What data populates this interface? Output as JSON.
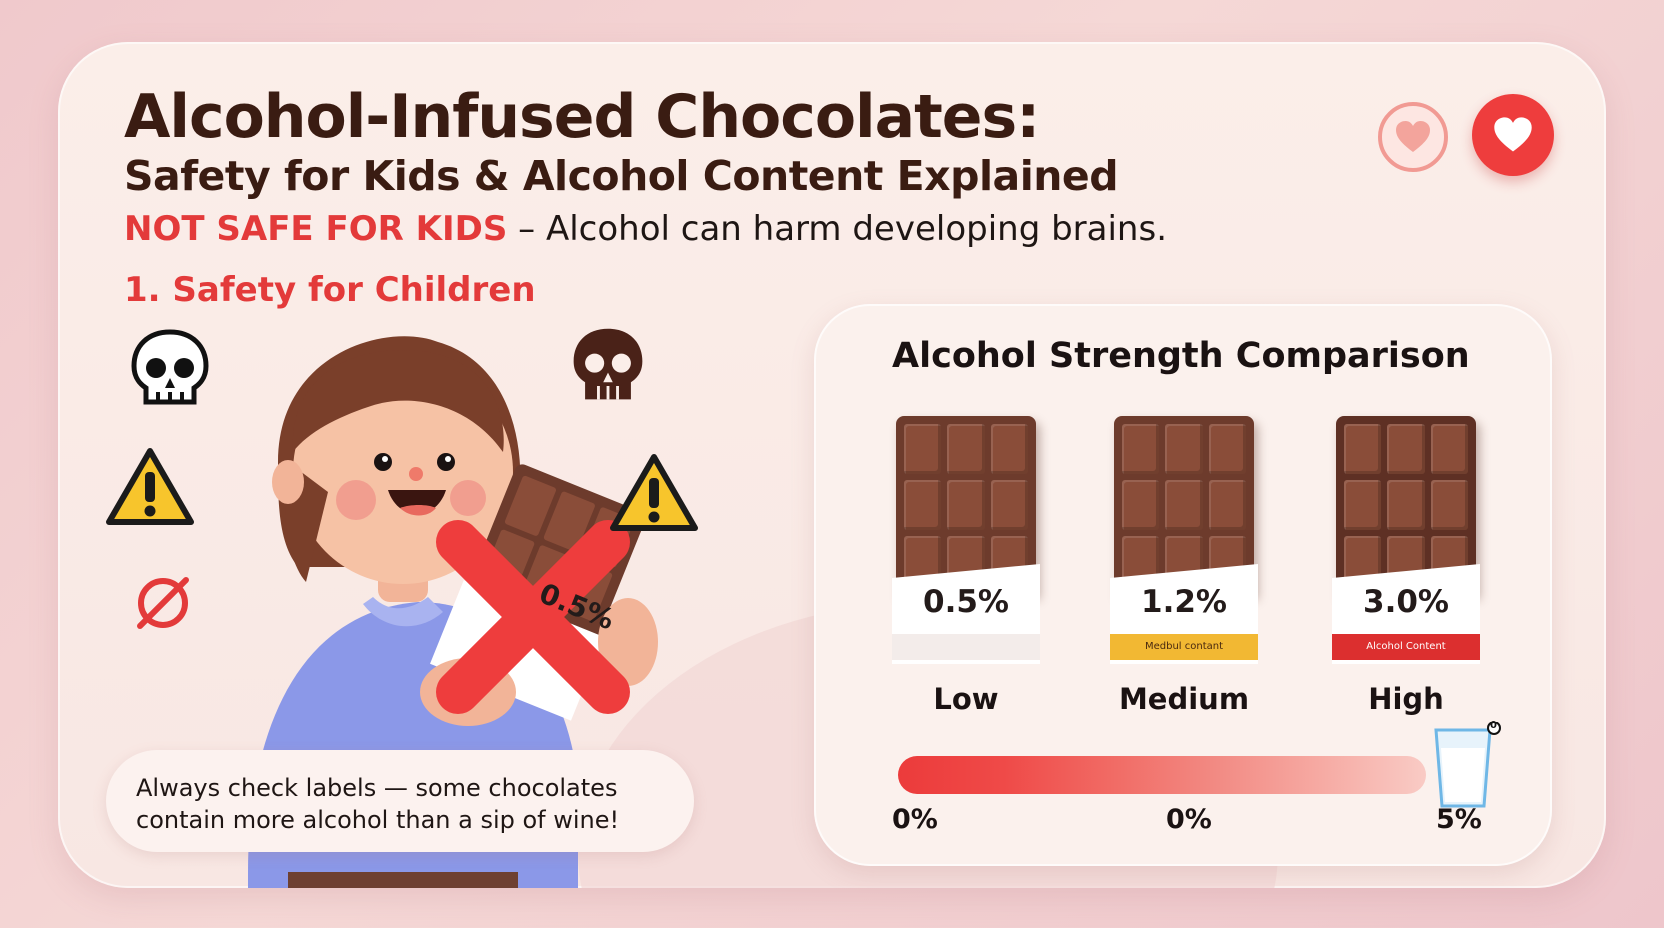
{
  "title": "Alcohol-Infused Chocolates:",
  "subtitle": "Safety for Kids & Alcohol Content Explained",
  "warning": {
    "emphasis": "NOT SAFE FOR KIDS",
    "text": " – Alcohol can harm developing brains."
  },
  "section": {
    "heading": "1. Safety for Children"
  },
  "illustration": {
    "bar_label": "0.5%"
  },
  "note": {
    "line1": "Always check labels — some chocolates",
    "line2": "contain more alcohol than a sip of wine!"
  },
  "comparison": {
    "title": "Alcohol Strength Comparison",
    "bars": [
      {
        "percent": "0.5%",
        "label": "Low",
        "strip_text": "",
        "strip_color": "#ffffff"
      },
      {
        "percent": "1.2%",
        "label": "Medium",
        "strip_text": "Medbul contant",
        "strip_color": "#f2b833"
      },
      {
        "percent": "3.0%",
        "label": "High",
        "strip_text": "Alcohol Content",
        "strip_color": "#dc2f2f"
      }
    ],
    "scale": {
      "labels": [
        "0%",
        "0%",
        "5%"
      ]
    },
    "glass_badge": "0"
  },
  "colors": {
    "accent_red": "#e33a3a",
    "chocolate": "#6d3b2c",
    "title_brown": "#3a1c12"
  },
  "icons": [
    "heart-outline-icon",
    "heart-filled-icon",
    "skull-icon",
    "warning-icon",
    "no-icon",
    "milk-glass-icon"
  ]
}
